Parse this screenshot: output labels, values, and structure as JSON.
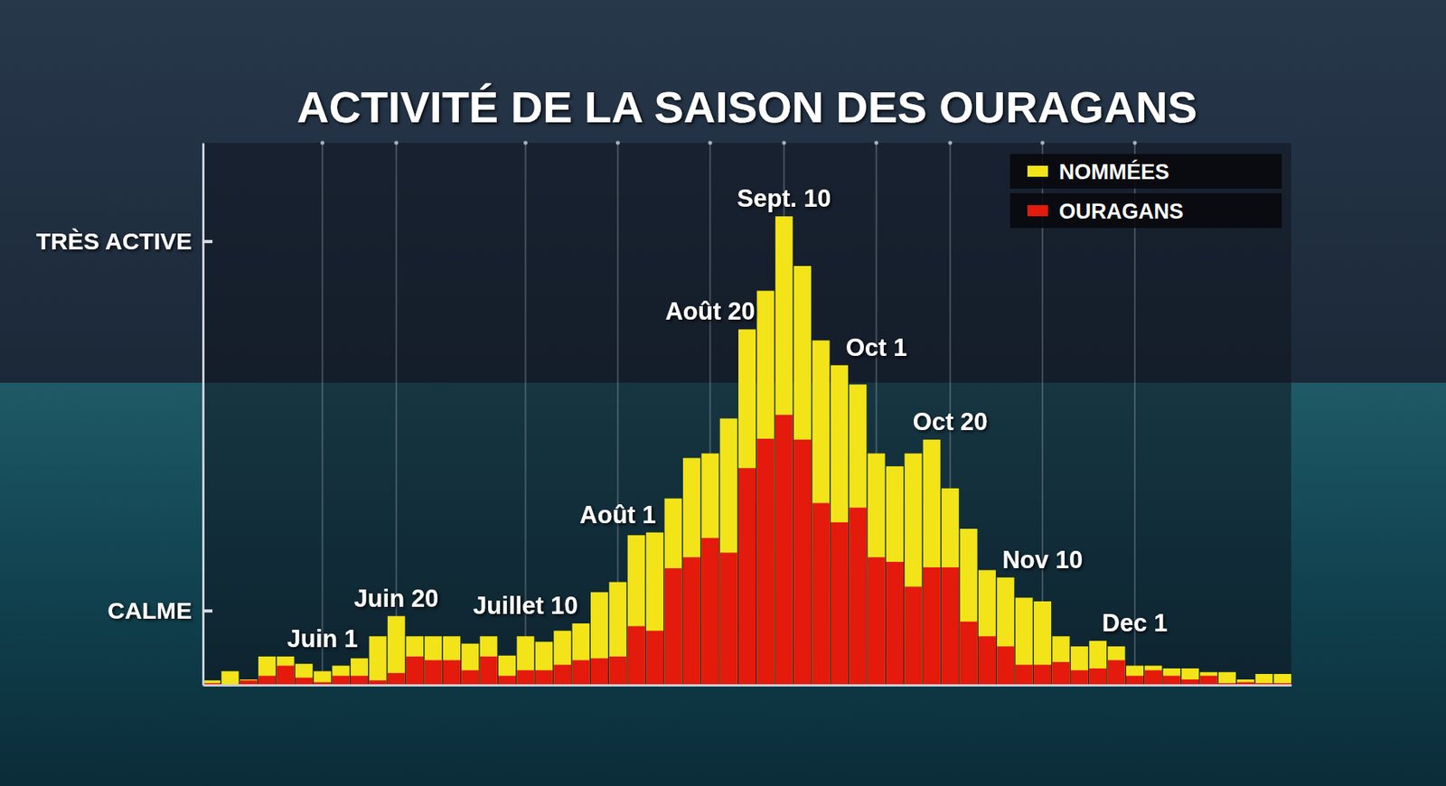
{
  "chart_data": {
    "type": "bar",
    "title": "ACTIVITÉ DE LA SAISON DES OURAGANS",
    "categories": [
      null,
      null,
      null,
      null,
      null,
      null,
      "Juin 1",
      null,
      null,
      null,
      "Juin 20",
      null,
      null,
      null,
      null,
      null,
      null,
      "Juillet 10",
      null,
      null,
      null,
      null,
      "Août 1",
      null,
      null,
      null,
      null,
      "Août 20",
      null,
      null,
      null,
      "Sept. 10",
      null,
      null,
      null,
      null,
      "Oct 1",
      null,
      null,
      null,
      "Oct 20",
      null,
      null,
      null,
      null,
      "Nov 10",
      null,
      null,
      null,
      null,
      "Dec 1",
      null,
      null,
      null,
      null,
      null,
      null,
      null,
      null
    ],
    "series": [
      {
        "name": "NOMMÉES",
        "color": "#f2e418",
        "values": [
          0.5,
          1.5,
          0.6,
          3.1,
          3.1,
          2.3,
          1.5,
          2.1,
          2.9,
          5.3,
          7.5,
          5.3,
          5.3,
          5.3,
          4.5,
          5.3,
          3.2,
          5.3,
          4.7,
          5.9,
          6.7,
          10.1,
          11.2,
          16.3,
          16.6,
          20.3,
          24.7,
          25.2,
          29.0,
          38.7,
          42.9,
          51.0,
          45.6,
          37.5,
          34.8,
          32.7,
          25.2,
          23.8,
          25.2,
          26.7,
          21.4,
          17.0,
          12.5,
          11.7,
          9.5,
          9.1,
          5.3,
          4.2,
          4.8,
          4.2,
          2.1,
          2.1,
          1.8,
          1.8,
          1.4,
          1.4,
          0.6,
          1.2,
          1.2
        ]
      },
      {
        "name": "OURAGANS",
        "color": "#e31a0c",
        "values": [
          0.2,
          0,
          0.5,
          1.0,
          2.1,
          0.8,
          0.3,
          1.0,
          1.0,
          0.5,
          1.3,
          3.1,
          2.7,
          2.7,
          1.6,
          3.1,
          1.0,
          1.6,
          1.6,
          2.2,
          2.7,
          2.9,
          3.1,
          6.4,
          5.9,
          12.7,
          13.9,
          16.0,
          14.4,
          23.6,
          26.8,
          29.4,
          26.7,
          19.8,
          17.7,
          19.3,
          13.9,
          13.4,
          10.7,
          12.8,
          12.8,
          6.9,
          5.3,
          4.2,
          2.2,
          2.2,
          2.5,
          1.6,
          1.8,
          2.7,
          1.0,
          1.6,
          1.0,
          0.6,
          1.0,
          0.2,
          0.3,
          0.2,
          0.2
        ]
      }
    ],
    "ylim": [
      0,
      59
    ],
    "yticks": [
      {
        "value": 8.1,
        "label": "CALME"
      },
      {
        "value": 48.3,
        "label": "TRÈS ACTIVE"
      }
    ],
    "grid": true,
    "legend": "top-right",
    "stacked": false
  }
}
